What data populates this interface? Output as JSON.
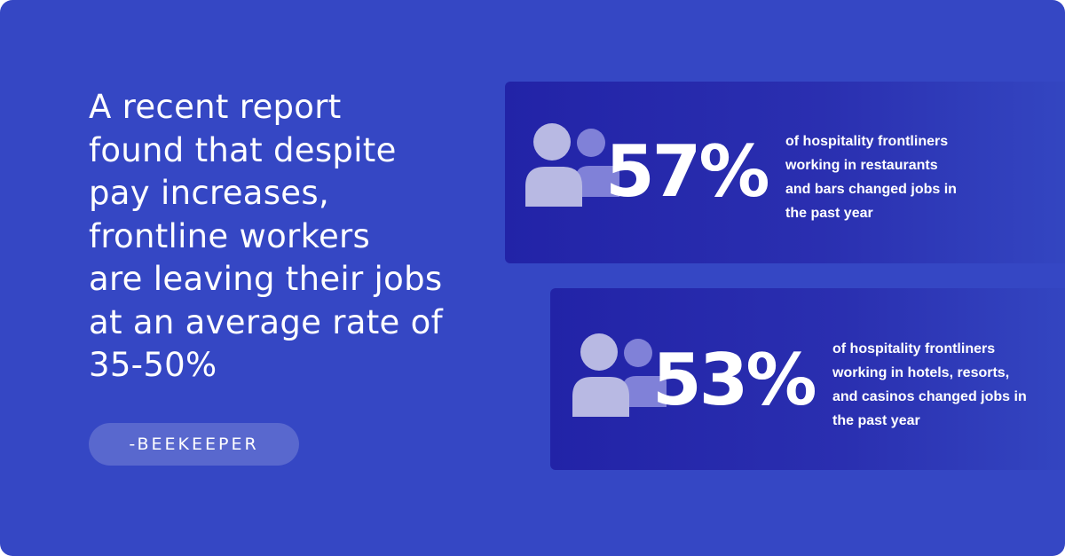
{
  "colors": {
    "background": "#3547c4",
    "panel_dark": "#2223a7",
    "panel_light": "#3447c2",
    "icon_front": "#b8b9e3",
    "icon_back": "#8081d8",
    "text": "#ffffff"
  },
  "quote": {
    "text": "A recent report\nfound that despite\npay increases,\nfrontline workers\nare leaving their jobs\nat an average rate of\n35-50%"
  },
  "source": {
    "label": "-BEEKEEPER"
  },
  "stats": [
    {
      "icon": "people-icon",
      "value": "57%",
      "description": "of hospitality frontliners\nworking in restaurants\nand bars changed jobs in\nthe past year"
    },
    {
      "icon": "people-icon",
      "value": "53%",
      "description": "of hospitality frontliners\nworking in hotels, resorts,\nand casinos changed jobs in\nthe past year"
    }
  ]
}
